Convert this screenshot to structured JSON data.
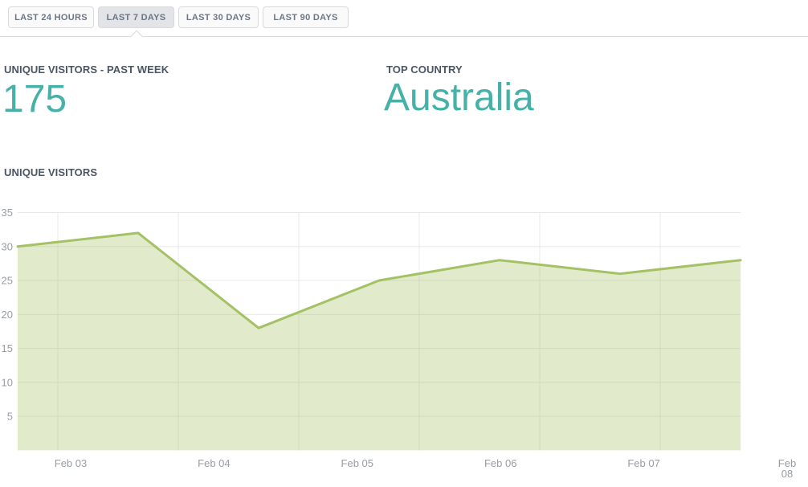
{
  "tabs": {
    "items": [
      {
        "label": "LAST 24 HOURS",
        "active": false
      },
      {
        "label": "LAST 7 DAYS",
        "active": true
      },
      {
        "label": "LAST 30 DAYS",
        "active": false
      },
      {
        "label": "LAST 90 DAYS",
        "active": false
      }
    ]
  },
  "stats": {
    "unique_visitors_week": {
      "label": "UNIQUE VISITORS - PAST WEEK",
      "value": "175"
    },
    "top_country": {
      "label": "TOP COUNTRY",
      "value": "Australia"
    }
  },
  "chart": {
    "title": "UNIQUE VISITORS"
  },
  "chart_data": {
    "type": "area",
    "title": "UNIQUE VISITORS",
    "x_tick_labels": [
      "Feb 03",
      "Feb 04",
      "Feb 05",
      "Feb 06",
      "Feb 07",
      "Feb 08"
    ],
    "values": [
      30,
      32,
      18,
      25,
      28,
      26,
      28
    ],
    "y_ticks": [
      5,
      10,
      15,
      20,
      25,
      30,
      35
    ],
    "ylim": [
      0,
      35
    ],
    "grid": true,
    "legend": "none",
    "line_color": "#a4c164",
    "fill_color": "rgba(164,193,100,0.33)",
    "gridline_color": "#e8e8e8",
    "axis_label_color": "#989da4"
  },
  "colors": {
    "accent_teal": "#47b1a7",
    "heading_text": "#4b5563",
    "tab_active_bg": "#e2e4e8",
    "tab_border": "#d8dade"
  }
}
